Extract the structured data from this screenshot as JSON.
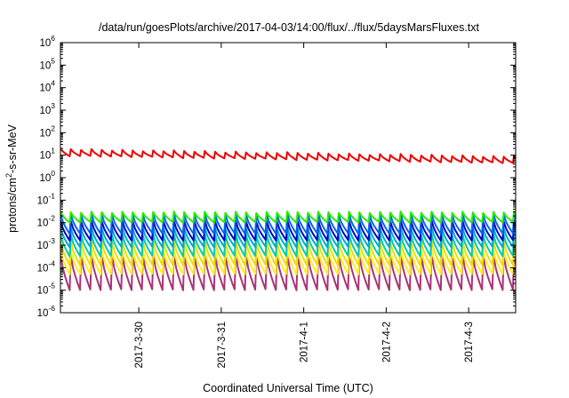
{
  "chart_data": {
    "type": "line",
    "title": "/data/run/goesPlots/archive/2017-04-03/14:00/flux/../flux/5daysMarsFluxes.txt",
    "xlabel": "Coordinated Universal Time (UTC)",
    "ylabel_main": "protons/cm",
    "ylabel_sup": "2",
    "ylabel_rest": "-s-sr-MeV",
    "yscale": "log",
    "ylim_exp": [
      -6,
      6
    ],
    "y_tick_exponents": [
      -6,
      -5,
      -4,
      -3,
      -2,
      -1,
      0,
      1,
      2,
      3,
      4,
      5,
      6
    ],
    "y_tick_base": "10",
    "xlim_days": [
      -0.95,
      4.57
    ],
    "x_ticks": [
      {
        "label": "2017-3-30",
        "day": 0
      },
      {
        "label": "2017-3-31",
        "day": 1
      },
      {
        "label": "2017-4-1",
        "day": 2
      },
      {
        "label": "2017-4-2",
        "day": 3
      },
      {
        "label": "2017-4-3",
        "day": 4
      }
    ],
    "sawtooth_period_days": 0.125,
    "colors": {
      "red": "#ee0000",
      "green": "#22ee00",
      "blue1": "#0066ee",
      "blue2": "#0000cc",
      "cyan": "#00aacc",
      "teal": "#00ccaa",
      "yellow": "#eedd00",
      "yellow2": "#ffee22",
      "purple": "#aa3377"
    },
    "series": [
      {
        "color": "red",
        "log_high": 1.3,
        "log_low": 0.95,
        "drift": -0.06
      },
      {
        "color": "green",
        "log_high": -1.5,
        "log_low": -2.0,
        "drift": 0
      },
      {
        "color": "blue1",
        "log_high": -1.6,
        "log_low": -2.5,
        "drift": 0
      },
      {
        "color": "blue2",
        "log_high": -1.9,
        "log_low": -2.8,
        "drift": 0
      },
      {
        "color": "cyan",
        "log_high": -2.2,
        "log_low": -3.1,
        "drift": 0
      },
      {
        "color": "teal",
        "log_high": -2.5,
        "log_low": -3.5,
        "drift": 0
      },
      {
        "color": "yellow",
        "log_high": -2.8,
        "log_low": -3.9,
        "drift": 0
      },
      {
        "color": "yellow2",
        "log_high": -3.2,
        "log_low": -4.3,
        "drift": 0
      },
      {
        "color": "purple",
        "log_high": -3.4,
        "log_low": -5.0,
        "drift": 0
      }
    ]
  }
}
